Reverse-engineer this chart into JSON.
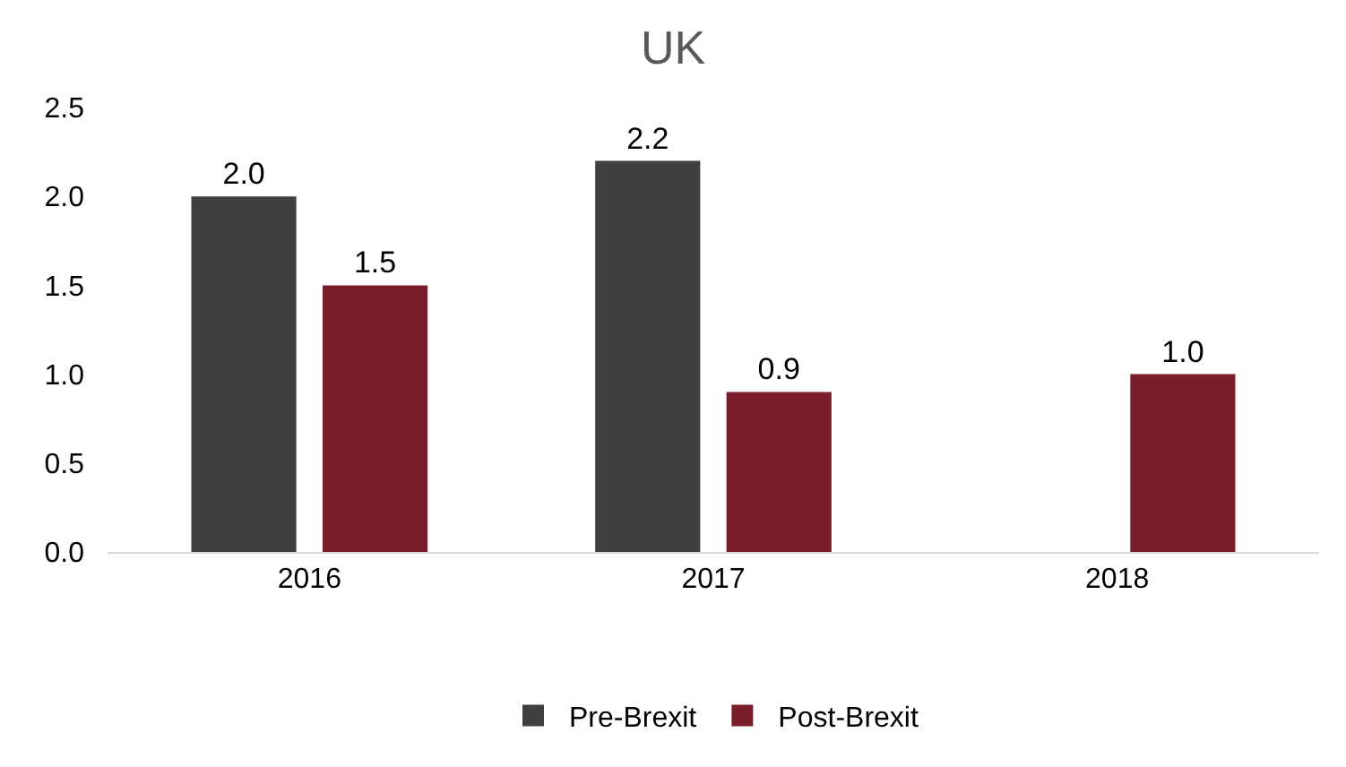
{
  "chart_data": {
    "type": "bar",
    "title": "UK",
    "categories": [
      "2016",
      "2017",
      "2018"
    ],
    "series": [
      {
        "name": "Pre-Brexit",
        "color": "#404040",
        "values": [
          2.0,
          2.2,
          null
        ],
        "value_labels": [
          "2.0",
          "2.2",
          null
        ]
      },
      {
        "name": "Post-Brexit",
        "color": "#7b1e2b",
        "values": [
          1.5,
          0.9,
          1.0
        ],
        "value_labels": [
          "1.5",
          "0.9",
          "1.0"
        ]
      }
    ],
    "ylim": [
      0,
      2.5
    ],
    "yticks": [
      {
        "value": 0,
        "label": "0.0"
      },
      {
        "value": 0.5,
        "label": "0.5"
      },
      {
        "value": 1,
        "label": "1.0"
      },
      {
        "value": 1.5,
        "label": "1.5"
      },
      {
        "value": 2,
        "label": "2.0"
      },
      {
        "value": 2.5,
        "label": "2.5"
      }
    ],
    "grid": false,
    "legend": "bottom"
  }
}
